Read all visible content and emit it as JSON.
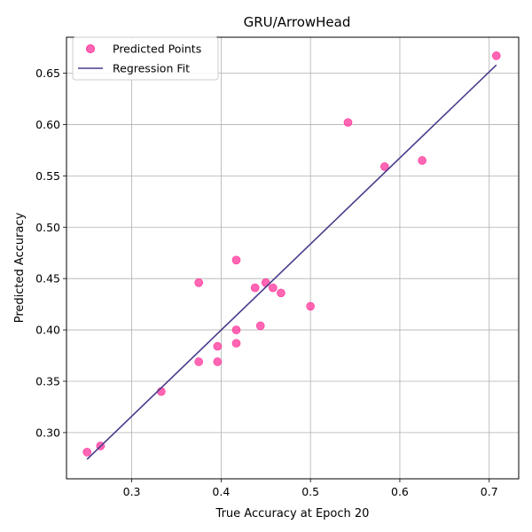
{
  "chart_data": {
    "type": "scatter",
    "title": "GRU/ArrowHead",
    "xlabel": "True Accuracy at Epoch 20",
    "ylabel": "Predicted Accuracy",
    "xlim": [
      0.227,
      0.733
    ],
    "ylim": [
      0.255,
      0.685
    ],
    "xticks": [
      0.3,
      0.4,
      0.5,
      0.6,
      0.7
    ],
    "yticks": [
      0.3,
      0.35,
      0.4,
      0.45,
      0.5,
      0.55,
      0.6,
      0.65
    ],
    "grid": true,
    "legend_position": "top-left",
    "series": [
      {
        "name": "Predicted Points",
        "kind": "scatter",
        "color": "#ff3399",
        "points": [
          {
            "x": 0.25,
            "y": 0.281
          },
          {
            "x": 0.265,
            "y": 0.287
          },
          {
            "x": 0.333,
            "y": 0.34
          },
          {
            "x": 0.375,
            "y": 0.369
          },
          {
            "x": 0.375,
            "y": 0.446
          },
          {
            "x": 0.396,
            "y": 0.384
          },
          {
            "x": 0.396,
            "y": 0.369
          },
          {
            "x": 0.417,
            "y": 0.4
          },
          {
            "x": 0.417,
            "y": 0.387
          },
          {
            "x": 0.417,
            "y": 0.468
          },
          {
            "x": 0.438,
            "y": 0.441
          },
          {
            "x": 0.444,
            "y": 0.404
          },
          {
            "x": 0.45,
            "y": 0.446
          },
          {
            "x": 0.458,
            "y": 0.441
          },
          {
            "x": 0.467,
            "y": 0.436
          },
          {
            "x": 0.5,
            "y": 0.423
          },
          {
            "x": 0.542,
            "y": 0.602
          },
          {
            "x": 0.583,
            "y": 0.559
          },
          {
            "x": 0.625,
            "y": 0.565
          },
          {
            "x": 0.708,
            "y": 0.667
          }
        ]
      },
      {
        "name": "Regression Fit",
        "kind": "line",
        "color": "#483d8b",
        "points": [
          {
            "x": 0.25,
            "y": 0.274
          },
          {
            "x": 0.708,
            "y": 0.658
          }
        ]
      }
    ]
  }
}
